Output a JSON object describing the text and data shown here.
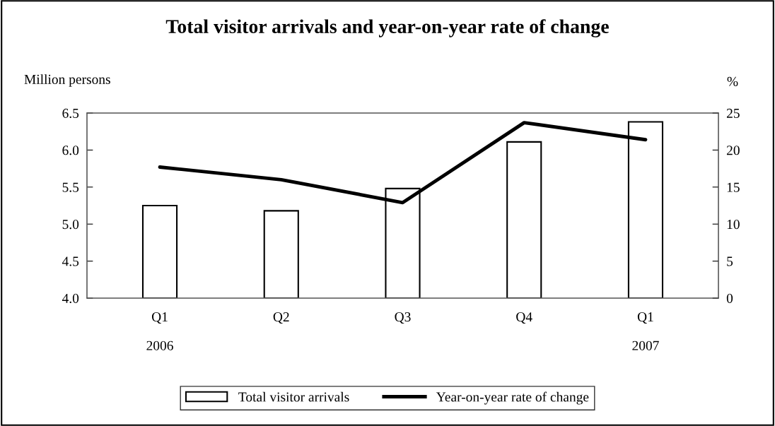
{
  "chart_data": {
    "type": "bar",
    "title": "Total visitor arrivals and year-on-year rate of change",
    "ylabel": "Million persons",
    "y2label": "%",
    "categories": [
      "Q1\n\n2006",
      "Q2",
      "Q3",
      "Q4",
      "Q1\n\n2007"
    ],
    "series": [
      {
        "name": "Total visitor arrivals",
        "color": "#ffffff",
        "values": [
          5.25,
          5.18,
          5.48,
          6.11,
          6.38
        ]
      },
      {
        "name": "Year-on-year rate of change",
        "type": "line",
        "axis": "y2",
        "color": "#000000",
        "values": [
          17.7,
          16.0,
          12.9,
          23.7,
          21.4
        ]
      }
    ],
    "ylim": [
      4.0,
      6.5
    ],
    "yticks": [
      {
        "value": 4.0,
        "label": "4.0"
      },
      {
        "value": 4.5,
        "label": "4.5"
      },
      {
        "value": 5.0,
        "label": "5.0"
      },
      {
        "value": 5.5,
        "label": "5.5"
      },
      {
        "value": 6.0,
        "label": "6.0"
      },
      {
        "value": 6.5,
        "label": "6.5"
      }
    ],
    "y2lim": [
      0,
      25
    ],
    "y2ticks": [
      0,
      5,
      10,
      15,
      20,
      25
    ],
    "grid": false,
    "legend": "bottom",
    "marker": "none",
    "line_style": "solid"
  }
}
